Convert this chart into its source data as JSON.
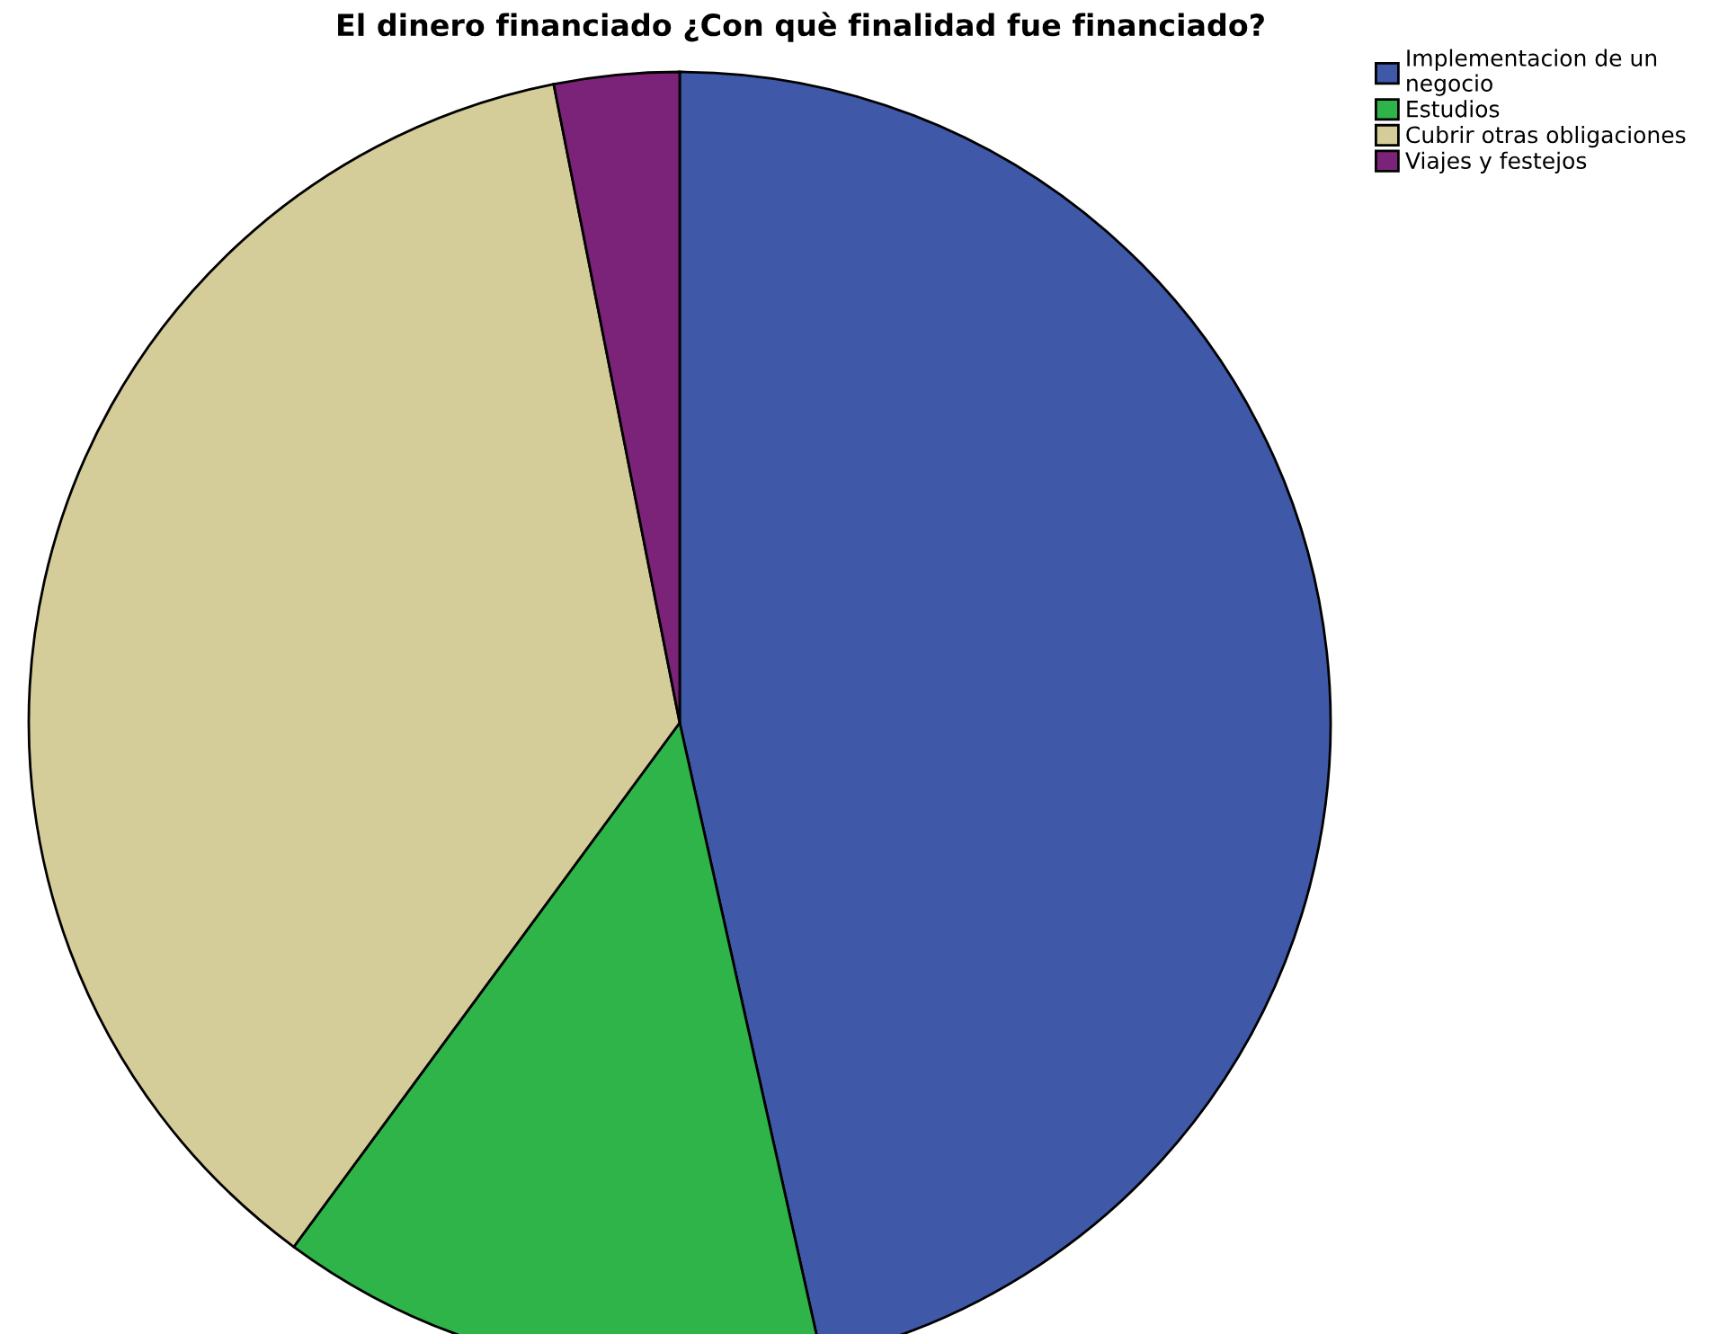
{
  "chart_data": {
    "type": "pie",
    "title": "El dinero financiado ¿Con què finalidad fue financiado?",
    "categories": [
      "Implementacion de un\nnegocio",
      "Estudios",
      "Cubrir otras obligaciones",
      "Viajes y festejos"
    ],
    "values": [
      46.5,
      13.6,
      36.8,
      3.1
    ],
    "colors": [
      "#3f58a8",
      "#2fb44a",
      "#d5cd99",
      "#7b2378"
    ],
    "legend": "top right"
  }
}
